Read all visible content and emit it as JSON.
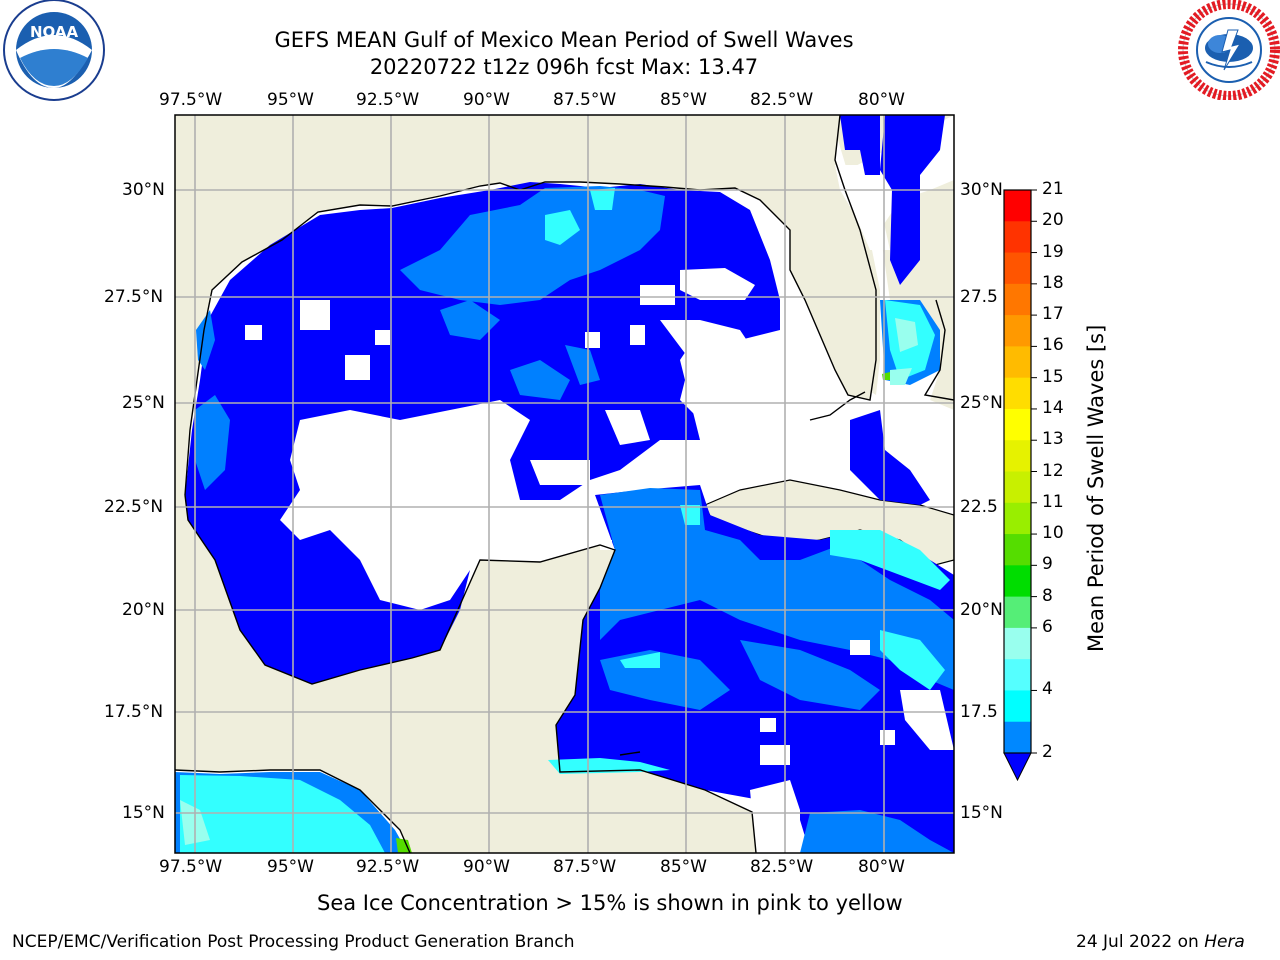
{
  "header": {
    "title_line1": "GEFS MEAN Gulf of Mexico Mean Period of Swell Waves",
    "title_line2": "20220722 t12z 096h fcst   Max: 13.47"
  },
  "logos": {
    "left": {
      "name": "noaa-logo",
      "text": "NOAA",
      "ring_text": "NATIONAL OCEANIC AND ATMOSPHERIC ADMINISTRATION · U.S. DEPARTMENT OF COMMERCE"
    },
    "right": {
      "name": "nws-logo",
      "ring_text": "NATIONAL WEATHER SERVICE"
    }
  },
  "map": {
    "lon_labels": [
      "97.5°W",
      "95°W",
      "92.5°W",
      "90°W",
      "87.5°W",
      "85°W",
      "82.5°W",
      "80°W"
    ],
    "lat_labels_left": [
      "30°N",
      "27.5°N",
      "25°N",
      "22.5°N",
      "20°N",
      "17.5°N",
      "15°N"
    ],
    "lat_labels_right": [
      "30°N",
      "27.5",
      "25°N",
      "22.5",
      "20°N",
      "17.5",
      "15°N"
    ],
    "land_color": "#efeedc",
    "grid_color": "#b0b0b0"
  },
  "colorbar": {
    "label": "Mean Period of Swell Waves [s]",
    "ticks": [
      "21",
      "20",
      "19",
      "18",
      "17",
      "16",
      "15",
      "14",
      "13",
      "12",
      "11",
      "10",
      "9",
      "8",
      "6",
      "4",
      "2"
    ],
    "colors_top_to_bottom": [
      "#ff0000",
      "#ff3300",
      "#ff5500",
      "#ff7700",
      "#ff9900",
      "#ffbb00",
      "#ffdd00",
      "#ffff00",
      "#e6f200",
      "#c8f000",
      "#99ee00",
      "#55dd00",
      "#00dd00",
      "#55ee77",
      "#99ffee",
      "#55ffff",
      "#00ffff",
      "#0088ff"
    ],
    "extend_color": "#0000ff"
  },
  "wave_colors": {
    "blue": "#0000ff",
    "mid": "#0080ff",
    "cyan": "#33ffff",
    "light": "#99ffee",
    "green": "#55dd00"
  },
  "footer": {
    "note": "Sea Ice Concentration > 15% is shown in pink to yellow",
    "left": "NCEP/EMC/Verification Post Processing Product Generation Branch",
    "right_prefix": "24 Jul 2022 on ",
    "right_host": "Hera"
  }
}
